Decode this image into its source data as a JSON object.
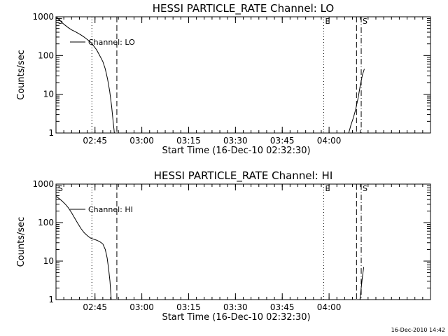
{
  "footer": {
    "timestamp": "16-Dec-2010 14:42"
  },
  "chart_data": [
    {
      "type": "line",
      "title": "HESSI PARTICLE_RATE Channel: LO",
      "xlabel": "Start Time (16-Dec-10 02:32:30)",
      "ylabel": "Counts/sec",
      "x_unit": "minutes after 02:32:30",
      "xlim": [
        0,
        120
      ],
      "ylim": [
        1,
        1000
      ],
      "yscale": "log",
      "xticks": [
        {
          "x": 12.5,
          "label": "02:45"
        },
        {
          "x": 27.5,
          "label": "03:00"
        },
        {
          "x": 42.5,
          "label": "03:15"
        },
        {
          "x": 57.5,
          "label": "03:30"
        },
        {
          "x": 72.5,
          "label": "03:45"
        },
        {
          "x": 87.5,
          "label": "04:00"
        }
      ],
      "yticks": [
        {
          "y": 1,
          "label": "1"
        },
        {
          "y": 10,
          "label": "10"
        },
        {
          "y": 100,
          "label": "100"
        },
        {
          "y": 1000,
          "label": "1000"
        }
      ],
      "legend": {
        "entry": "Channel: LO",
        "placement": "top-left"
      },
      "markers": [
        {
          "x": 0.2,
          "label": "S",
          "style": "none"
        },
        {
          "x": 11.5,
          "label": "",
          "style": "dotted"
        },
        {
          "x": 19.5,
          "label": "",
          "style": "dashed"
        },
        {
          "x": 85.8,
          "label": "E",
          "style": "dotted"
        },
        {
          "x": 96.3,
          "label": "",
          "style": "dashed"
        },
        {
          "x": 97.8,
          "label": "S",
          "style": "dashdot"
        }
      ],
      "series": [
        {
          "name": "Channel: LO",
          "segments": [
            [
              [
                0,
                1000
              ],
              [
                1,
                850
              ],
              [
                2,
                700
              ],
              [
                3,
                600
              ],
              [
                4,
                520
              ],
              [
                5,
                460
              ],
              [
                6,
                420
              ],
              [
                7,
                380
              ],
              [
                8,
                340
              ],
              [
                9,
                300
              ],
              [
                10,
                260
              ],
              [
                11,
                225
              ],
              [
                12,
                180
              ],
              [
                13,
                140
              ],
              [
                14,
                100
              ],
              [
                15,
                70
              ],
              [
                15.8,
                45
              ],
              [
                16.5,
                25
              ],
              [
                17.2,
                12
              ],
              [
                17.8,
                5
              ],
              [
                18.3,
                2
              ],
              [
                18.7,
                1
              ]
            ],
            [
              [
                93.8,
                1
              ],
              [
                94.5,
                1.6
              ],
              [
                95.3,
                2.5
              ],
              [
                96,
                4
              ],
              [
                96.8,
                8
              ],
              [
                97.5,
                17
              ],
              [
                98.2,
                32
              ],
              [
                98.8,
                45
              ]
            ]
          ]
        }
      ]
    },
    {
      "type": "line",
      "title": "HESSI PARTICLE_RATE Channel: HI",
      "xlabel": "Start Time (16-Dec-10 02:32:30)",
      "ylabel": "Counts/sec",
      "x_unit": "minutes after 02:32:30",
      "xlim": [
        0,
        120
      ],
      "ylim": [
        1,
        1000
      ],
      "yscale": "log",
      "xticks": [
        {
          "x": 12.5,
          "label": "02:45"
        },
        {
          "x": 27.5,
          "label": "03:00"
        },
        {
          "x": 42.5,
          "label": "03:15"
        },
        {
          "x": 57.5,
          "label": "03:30"
        },
        {
          "x": 72.5,
          "label": "03:45"
        },
        {
          "x": 87.5,
          "label": "04:00"
        }
      ],
      "yticks": [
        {
          "y": 1,
          "label": "1"
        },
        {
          "y": 10,
          "label": "10"
        },
        {
          "y": 100,
          "label": "100"
        },
        {
          "y": 1000,
          "label": "1000"
        }
      ],
      "legend": {
        "entry": "Channel: HI",
        "placement": "top-left"
      },
      "markers": [
        {
          "x": 0.2,
          "label": "S",
          "style": "none"
        },
        {
          "x": 11.5,
          "label": "",
          "style": "dotted"
        },
        {
          "x": 19.5,
          "label": "",
          "style": "dashed"
        },
        {
          "x": 85.8,
          "label": "E",
          "style": "dotted"
        },
        {
          "x": 96.3,
          "label": "",
          "style": "dashed"
        },
        {
          "x": 97.8,
          "label": "S",
          "style": "dashdot"
        }
      ],
      "series": [
        {
          "name": "Channel: HI",
          "segments": [
            [
              [
                0,
                480
              ],
              [
                1,
                420
              ],
              [
                2,
                360
              ],
              [
                3,
                300
              ],
              [
                4,
                240
              ],
              [
                5,
                180
              ],
              [
                6,
                130
              ],
              [
                7,
                95
              ],
              [
                8,
                70
              ],
              [
                9,
                55
              ],
              [
                10,
                46
              ],
              [
                11,
                40
              ],
              [
                12,
                37
              ],
              [
                13,
                35
              ],
              [
                14,
                32
              ],
              [
                15,
                28
              ],
              [
                15.8,
                20
              ],
              [
                16.4,
                12
              ],
              [
                16.9,
                6
              ],
              [
                17.3,
                3
              ],
              [
                17.7,
                1
              ]
            ],
            [
              [
                97.4,
                1
              ],
              [
                97.8,
                2
              ],
              [
                98.2,
                4
              ],
              [
                98.6,
                7
              ]
            ]
          ]
        }
      ]
    }
  ]
}
